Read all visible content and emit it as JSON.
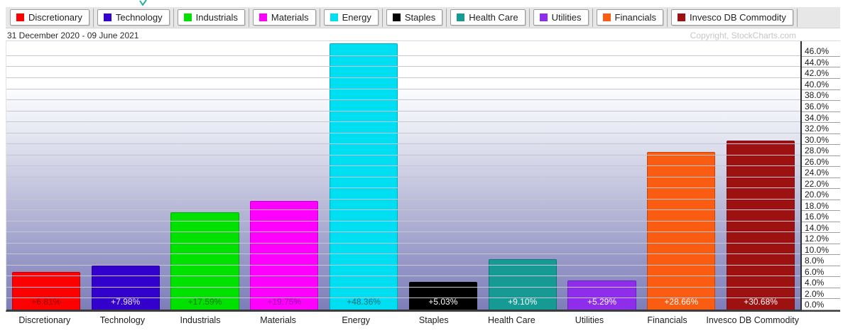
{
  "meta": {
    "date_range": "31 December 2020 - 09 June 2021",
    "copyright": "Copyright, StockCharts.com"
  },
  "legend": {
    "items": [
      {
        "label": "Discretionary",
        "color": "#fe0000"
      },
      {
        "label": "Technology",
        "color": "#3300cc"
      },
      {
        "label": "Industrials",
        "color": "#00e100"
      },
      {
        "label": "Materials",
        "color": "#ff00ff"
      },
      {
        "label": "Energy",
        "color": "#00dff2"
      },
      {
        "label": "Staples",
        "color": "#000000"
      },
      {
        "label": "Health Care",
        "color": "#169a94"
      },
      {
        "label": "Utilities",
        "color": "#8e2dea"
      },
      {
        "label": "Financials",
        "color": "#fa5c11"
      },
      {
        "label": "Invesco DB Commodity",
        "color": "#9e1111"
      }
    ]
  },
  "chart_data": {
    "type": "bar",
    "title": "Sector performance, 31 December 2020 - 09 June 2021",
    "categories": [
      "Discretionary",
      "Technology",
      "Industrials",
      "Materials",
      "Energy",
      "Staples",
      "Health Care",
      "Utilities",
      "Financials",
      "Invesco DB Commodity"
    ],
    "values": [
      6.81,
      7.98,
      17.59,
      19.75,
      48.36,
      5.03,
      9.1,
      5.29,
      28.66,
      30.68
    ],
    "value_labels": [
      "+6.81%",
      "+7.98%",
      "+17.59%",
      "+19.75%",
      "+48.36%",
      "+5.03%",
      "+9.10%",
      "+5.29%",
      "+28.66%",
      "+30.68%"
    ],
    "bar_colors": [
      "#fe0000",
      "#3300cc",
      "#00e100",
      "#ff00ff",
      "#00dff2",
      "#000000",
      "#169a94",
      "#8e2dea",
      "#fa5c11",
      "#9e1111"
    ],
    "value_label_colors": [
      "#8b0000",
      "#e9e5ff",
      "#007700",
      "#97009b",
      "#0c6b80",
      "#ffffff",
      "#ffffff",
      "#ffffff",
      "#ffffff",
      "#ffffff"
    ],
    "xlabel": "",
    "ylabel": "",
    "ylim": [
      0,
      48.7
    ],
    "y_tick_step": 2,
    "y_tick_labels": [
      "0.0%",
      "2.0%",
      "4.0%",
      "6.0%",
      "8.0%",
      "10.0%",
      "12.0%",
      "14.0%",
      "16.0%",
      "18.0%",
      "20.0%",
      "22.0%",
      "24.0%",
      "26.0%",
      "28.0%",
      "30.0%",
      "32.0%",
      "34.0%",
      "36.0%",
      "38.0%",
      "40.0%",
      "42.0%",
      "44.0%",
      "46.0%"
    ],
    "grid": true,
    "legend_position": "top"
  }
}
